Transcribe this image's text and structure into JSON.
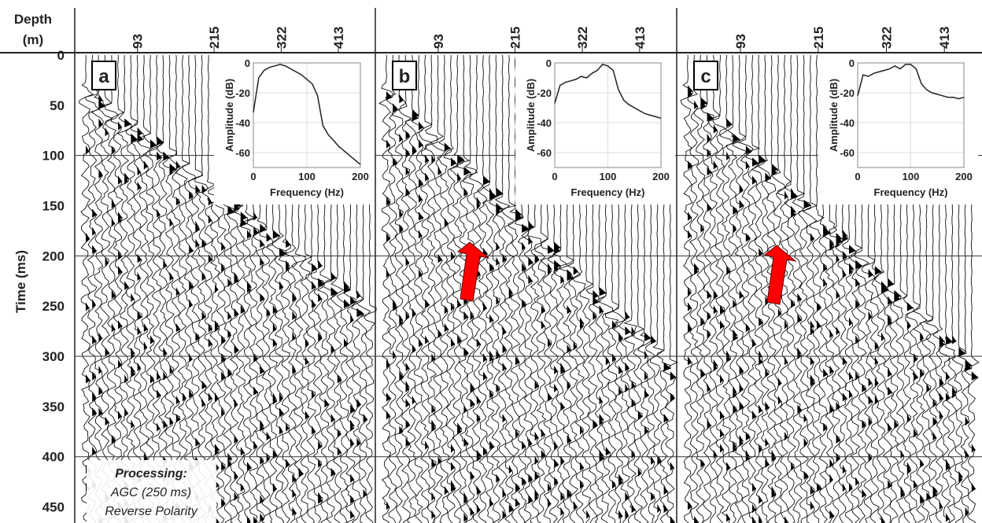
{
  "figure": {
    "time_axis": {
      "label": "Time (ms)",
      "ylim": [
        0,
        466
      ],
      "yticks": [
        0,
        50,
        100,
        150,
        200,
        250,
        300,
        350,
        400,
        450
      ]
    },
    "depth_axis": {
      "label": [
        "Depth",
        "(m)"
      ],
      "xlim": [
        -7,
        472
      ],
      "xticks": [
        93,
        215,
        322,
        413
      ]
    },
    "note": [
      "Processing:",
      "AGC (250 ms)",
      "Reverse Polarity"
    ]
  },
  "chart_data": [
    {
      "type": "line",
      "label": "a",
      "xlabel": "Frequency (Hz)",
      "ylabel": "Amplitude (dB)",
      "x": [
        0,
        10,
        20,
        30,
        40,
        50,
        60,
        70,
        80,
        90,
        100,
        110,
        120,
        130,
        140,
        150,
        160,
        170,
        180,
        190,
        200
      ],
      "values": [
        -33,
        -10,
        -5,
        -3,
        -2,
        -1,
        -2,
        -4,
        -6,
        -8,
        -11,
        -14,
        -22,
        -42,
        -48,
        -52,
        -56,
        -59,
        -62,
        -65,
        -68
      ],
      "color": "#222",
      "xlim": [
        0,
        200
      ],
      "ylim": [
        -70,
        0
      ],
      "xticks": [
        0,
        100,
        200
      ],
      "yticks": [
        0,
        -20,
        -40,
        -60
      ],
      "grid": true
    },
    {
      "type": "line",
      "label": "b",
      "xlabel": "Frequency (Hz)",
      "ylabel": "Amplitude (dB)",
      "x": [
        0,
        10,
        20,
        30,
        40,
        50,
        60,
        70,
        80,
        90,
        100,
        110,
        120,
        130,
        140,
        150,
        160,
        170,
        180,
        190,
        200
      ],
      "values": [
        -27,
        -15,
        -13,
        -12,
        -11,
        -9,
        -10,
        -7,
        -5,
        -1,
        -2,
        -5,
        -18,
        -25,
        -28,
        -30,
        -32,
        -34,
        -35,
        -36,
        -37
      ],
      "color": "#222",
      "xlim": [
        0,
        200
      ],
      "ylim": [
        -70,
        0
      ],
      "xticks": [
        0,
        100,
        200
      ],
      "yticks": [
        0,
        -20,
        -40,
        -60
      ],
      "grid": true
    },
    {
      "type": "line",
      "label": "c",
      "xlabel": "Frequency (Hz)",
      "ylabel": "Amplitude (dB)",
      "x": [
        0,
        10,
        20,
        30,
        40,
        50,
        60,
        70,
        80,
        90,
        100,
        110,
        120,
        130,
        140,
        150,
        160,
        170,
        180,
        190,
        200
      ],
      "values": [
        -22,
        -8,
        -9,
        -7,
        -6,
        -5,
        -4,
        -2,
        -4,
        -1,
        -1,
        -4,
        -14,
        -18,
        -20,
        -21,
        -22,
        -23,
        -23,
        -24,
        -23
      ],
      "color": "#222",
      "xlim": [
        0,
        200
      ],
      "ylim": [
        -70,
        0
      ],
      "xticks": [
        0,
        100,
        200
      ],
      "yticks": [
        0,
        -20,
        -40,
        -60
      ],
      "grid": true
    }
  ]
}
